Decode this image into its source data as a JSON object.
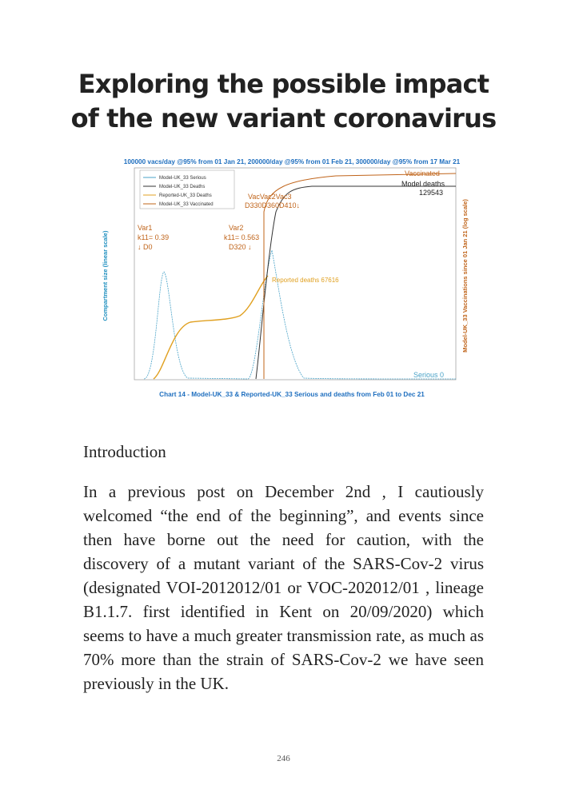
{
  "header": {
    "title": [
      "Exploring the possible impact",
      "of the new variant coronavirus"
    ]
  },
  "figure": {
    "title": "100000 vacs/day @95% from 01 Jan 21, 200000/day @95% from 01 Feb 21, 300000/day @95% from 17 Mar 21",
    "legend": [
      "Model-UK_33 Serious",
      "Model-UK_33 Deaths",
      "Reported-UK_33 Deaths",
      "Model-UK_33 Vaccinated"
    ],
    "y_label": "Compartment size (linear scale)",
    "y2_label": "Model-UK_33 Vaccinations since 01 Jan 21 (log scale)",
    "annotations": {
      "var1": [
        "Var1",
        "k11= 0.39",
        "↓ D0"
      ],
      "var2": [
        "Var2",
        "k11= 0.563",
        "D320 ↓"
      ],
      "vacvac": [
        "VacVac2Vac3",
        "D330D360D410↓"
      ],
      "model_deaths": [
        "Model deaths",
        "129543"
      ],
      "reported_deaths": "Reported deaths 67616",
      "vaccinated": "Vaccinated",
      "serious": "Serious 0"
    },
    "caption": "Chart 14 - Model-UK_33 & Reported-UK_33 Serious and deaths from Feb 01 to Dec 21"
  },
  "section": {
    "heading": "Introduction",
    "paragraph": "In a previous post on December 2nd , I cautiously welcomed “the end of the beginning”, and events since then have borne out the need for caution, with the discovery of a mutant variant of the SARS-Cov-2 virus (designated VOI-2012012/01 or VOC-202012/01 , lineage B1.1.7. first identified in Kent on 20/09/2020) which seems to have a much greater transmission rate, as much as 70% more than the strain of SARS-Cov-2 we have seen previously in the UK."
  },
  "footer": {
    "page_number": "246"
  }
}
